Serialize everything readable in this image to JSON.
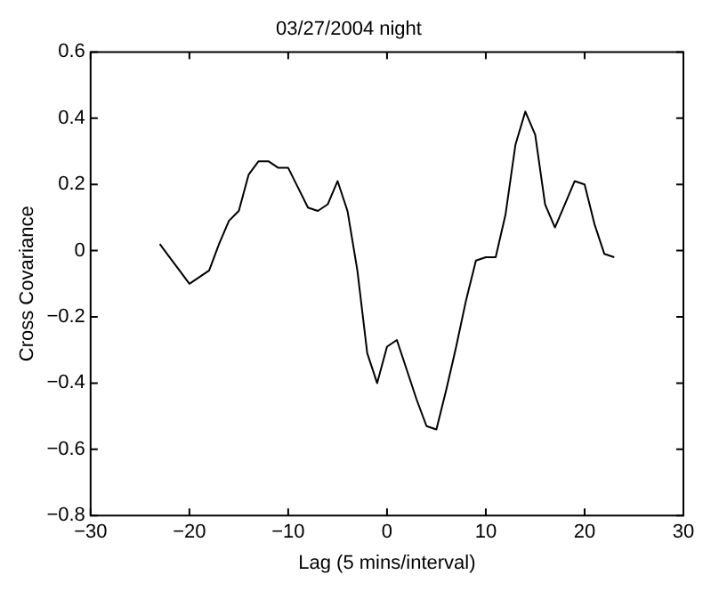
{
  "chart_data": {
    "type": "line",
    "title": "03/27/2004 night",
    "xlabel": "Lag (5 mins/interval)",
    "ylabel": "Cross Covariance",
    "x": [
      -23,
      -22,
      -21,
      -20,
      -19,
      -18,
      -17,
      -16,
      -15,
      -14,
      -13,
      -12,
      -11,
      -10,
      -9,
      -8,
      -7,
      -6,
      -5,
      -4,
      -3,
      -2,
      -1,
      0,
      1,
      2,
      3,
      4,
      5,
      6,
      7,
      8,
      9,
      10,
      11,
      12,
      13,
      14,
      15,
      16,
      17,
      18,
      19,
      20,
      21,
      22,
      23
    ],
    "series": [
      {
        "color": "#000000",
        "values": [
          0.02,
          -0.02,
          -0.06,
          -0.1,
          -0.08,
          -0.06,
          0.02,
          0.09,
          0.12,
          0.23,
          0.27,
          0.27,
          0.25,
          0.25,
          0.19,
          0.13,
          0.12,
          0.14,
          0.21,
          0.12,
          -0.06,
          -0.31,
          -0.4,
          -0.29,
          -0.27,
          -0.36,
          -0.45,
          -0.53,
          -0.54,
          -0.42,
          -0.29,
          -0.15,
          -0.03,
          -0.02,
          -0.02,
          0.11,
          0.32,
          0.42,
          0.35,
          0.14,
          0.07,
          0.14,
          0.21,
          0.2,
          0.08,
          -0.01,
          -0.02
        ]
      }
    ],
    "xlim": [
      -30,
      30
    ],
    "xticks": [
      -30,
      -20,
      -10,
      0,
      10,
      20,
      30
    ],
    "ylim": [
      -0.8,
      0.6
    ],
    "yticks": [
      -0.8,
      -0.6,
      -0.4,
      -0.2,
      0,
      0.2,
      0.4,
      0.6
    ],
    "grid": false,
    "legend": false,
    "marker": "none",
    "line_style": "solid"
  }
}
